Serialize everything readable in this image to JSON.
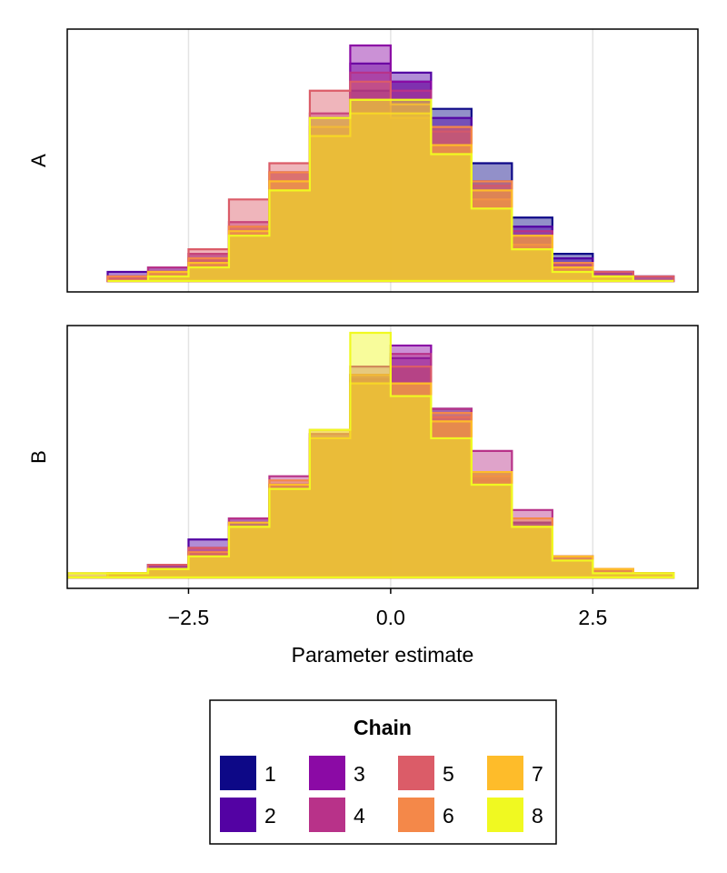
{
  "chart_data": {
    "type": "histogram",
    "shared_xlabel": "Parameter estimate",
    "xlim": [
      -4.0,
      3.8
    ],
    "xticks": [
      -2.5,
      0.0,
      2.5
    ],
    "xtick_labels": [
      "−2.5",
      "0.0",
      "2.5"
    ],
    "grid": true,
    "legend": {
      "title": "Chain",
      "placement": "bottom-center",
      "columns": 4,
      "entries": [
        {
          "label": "1",
          "color": "#0d0887"
        },
        {
          "label": "2",
          "color": "#5302a3"
        },
        {
          "label": "3",
          "color": "#8b0aa5"
        },
        {
          "label": "4",
          "color": "#b83289"
        },
        {
          "label": "5",
          "color": "#db5c68"
        },
        {
          "label": "6",
          "color": "#f48849"
        },
        {
          "label": "7",
          "color": "#febc2a"
        },
        {
          "label": "8",
          "color": "#f0f921"
        }
      ]
    },
    "panels": [
      {
        "label": "A",
        "ylim": [
          0,
          54
        ],
        "bin_edges": [
          -3.5,
          -3.0,
          -2.5,
          -2.0,
          -1.5,
          -1.0,
          -0.5,
          0.0,
          0.5,
          1.0,
          1.5,
          2.0,
          2.5,
          3.0,
          3.5
        ],
        "series": [
          {
            "name": "1",
            "counts": [
              1,
              2,
              5,
              10,
              20,
              32,
              42,
              44,
              38,
              26,
              14,
              6,
              2,
              1
            ]
          },
          {
            "name": "2",
            "counts": [
              2,
              3,
              6,
              12,
              24,
              34,
              48,
              46,
              36,
              22,
              12,
              5,
              2,
              0
            ]
          },
          {
            "name": "3",
            "counts": [
              1,
              2,
              5,
              11,
              22,
              36,
              52,
              44,
              34,
              20,
              10,
              4,
              2,
              1
            ]
          },
          {
            "name": "4",
            "counts": [
              1,
              3,
              6,
              13,
              24,
              37,
              46,
              42,
              33,
              21,
              11,
              4,
              1,
              0
            ]
          },
          {
            "name": "5",
            "counts": [
              1,
              2,
              7,
              18,
              26,
              42,
              44,
              36,
              30,
              18,
              8,
              3,
              2,
              1
            ]
          },
          {
            "name": "6",
            "counts": [
              1,
              2,
              5,
              12,
              24,
              34,
              40,
              39,
              34,
              22,
              10,
              4,
              1,
              0
            ]
          },
          {
            "name": "7",
            "counts": [
              0,
              2,
              4,
              11,
              22,
              32,
              37,
              37,
              30,
              20,
              10,
              3,
              1,
              0
            ]
          },
          {
            "name": "8",
            "counts": [
              0,
              1,
              3,
              10,
              20,
              36,
              40,
              40,
              28,
              16,
              7,
              2,
              1,
              0
            ]
          }
        ]
      },
      {
        "label": "B",
        "ylim": [
          0,
          58
        ],
        "bin_edges": [
          -4.0,
          -3.5,
          -3.0,
          -2.5,
          -2.0,
          -1.5,
          -1.0,
          -0.5,
          0.0,
          0.5,
          1.0,
          1.5,
          2.0,
          2.5,
          3.0,
          3.5
        ],
        "series": [
          {
            "name": "1",
            "counts": [
              0,
              1,
              3,
              6,
              13,
              22,
              33,
              48,
              50,
              40,
              25,
              13,
              5,
              2,
              1
            ]
          },
          {
            "name": "2",
            "counts": [
              0,
              1,
              3,
              9,
              14,
              22,
              33,
              47,
              52,
              37,
              24,
              13,
              4,
              2,
              0
            ]
          },
          {
            "name": "3",
            "counts": [
              0,
              1,
              3,
              7,
              12,
              22,
              34,
              48,
              55,
              38,
              23,
              12,
              5,
              2,
              0
            ]
          },
          {
            "name": "4",
            "counts": [
              0,
              1,
              2,
              6,
              14,
              24,
              34,
              50,
              53,
              40,
              30,
              16,
              5,
              2,
              1
            ]
          },
          {
            "name": "5",
            "counts": [
              1,
              1,
              3,
              7,
              12,
              21,
              33,
              48,
              50,
              38,
              24,
              12,
              4,
              2,
              1
            ]
          },
          {
            "name": "6",
            "counts": [
              0,
              1,
              2,
              6,
              12,
              23,
              35,
              48,
              46,
              39,
              25,
              14,
              5,
              2,
              1
            ]
          },
          {
            "name": "7",
            "counts": [
              0,
              1,
              2,
              5,
              13,
              22,
              33,
              46,
              46,
              37,
              25,
              12,
              5,
              2,
              1
            ]
          },
          {
            "name": "8",
            "counts": [
              1,
              1,
              2,
              5,
              12,
              21,
              35,
              58,
              43,
              33,
              22,
              12,
              4,
              1,
              1
            ]
          }
        ]
      }
    ]
  }
}
